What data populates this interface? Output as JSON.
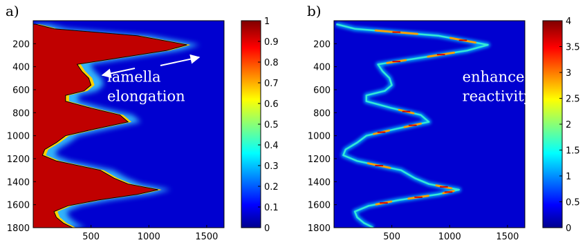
{
  "chart_data": [
    {
      "type": "heatmap",
      "panel_label": "a)",
      "x_ticks": [
        500,
        1000,
        1500
      ],
      "y_ticks": [
        200,
        400,
        600,
        800,
        1000,
        1200,
        1400,
        1600,
        1800
      ],
      "xlim": [
        0,
        1650
      ],
      "ylim": [
        0,
        1800
      ],
      "y_reversed": true,
      "colorbar": {
        "ticks": [
          "0",
          "0.1",
          "0.2",
          "0.3",
          "0.4",
          "0.5",
          "0.6",
          "0.7",
          "0.8",
          "0.9",
          "1"
        ],
        "range": [
          0,
          1
        ]
      },
      "colormap": "jet",
      "front_profile": {
        "y": [
          30,
          70,
          130,
          210,
          260,
          330,
          380,
          440,
          500,
          560,
          610,
          650,
          700,
          760,
          820,
          880,
          940,
          1000,
          1060,
          1120,
          1170,
          1220,
          1300,
          1370,
          1420,
          1470,
          1510,
          1560,
          1610,
          1660,
          1710,
          1760,
          1800
        ],
        "x": [
          20,
          180,
          900,
          1330,
          1150,
          700,
          380,
          420,
          480,
          500,
          440,
          280,
          280,
          500,
          750,
          820,
          540,
          280,
          200,
          100,
          80,
          200,
          580,
          700,
          820,
          1080,
          900,
          560,
          300,
          180,
          200,
          260,
          340
        ]
      },
      "annotations": [
        {
          "text": "lamella",
          "x": 640,
          "y": 530
        },
        {
          "text": "elongation",
          "x": 640,
          "y": 700
        }
      ]
    },
    {
      "type": "heatmap",
      "panel_label": "b)",
      "x_ticks": [
        500,
        1000,
        1500
      ],
      "y_ticks": [
        200,
        400,
        600,
        800,
        1000,
        1200,
        1400,
        1600,
        1800
      ],
      "xlim": [
        0,
        1650
      ],
      "ylim": [
        0,
        1800
      ],
      "y_reversed": true,
      "colorbar": {
        "ticks": [
          "0",
          "0.5",
          "1",
          "1.5",
          "2",
          "2.5",
          "3",
          "3.5",
          "4"
        ],
        "range": [
          0,
          4
        ]
      },
      "colormap": "jet",
      "annotations": [
        {
          "text": "enhanced",
          "x": 1110,
          "y": 530
        },
        {
          "text": "reactivity",
          "x": 1110,
          "y": 700
        }
      ]
    }
  ]
}
